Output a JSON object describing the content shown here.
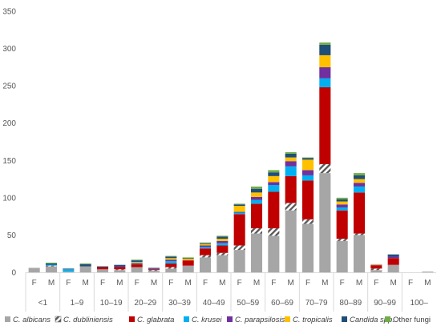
{
  "chart_data": {
    "type": "bar",
    "stacked": true,
    "ylim": [
      0,
      350
    ],
    "yticks": [
      0,
      50,
      100,
      150,
      200,
      250,
      300,
      350
    ],
    "grid": false,
    "legend_position": "bottom",
    "colors": {
      "C. albicans": "#a6a6a6",
      "C. dubliniensis": "hatch",
      "C. glabrata": "#c00000",
      "C. krusei": "#00b0f0",
      "C. parapsilosis": "#7030a0",
      "C. tropicalis": "#ffc000",
      "Candida spp.": "#1f4e79",
      "Other fungi": "#70ad47"
    },
    "age_groups": [
      "<1",
      "1–9",
      "10–19",
      "20–29",
      "30–39",
      "40–49",
      "50–59",
      "60–69",
      "70–79",
      "80–89",
      "90–99",
      "100–"
    ],
    "sex_labels": [
      "F",
      "M"
    ],
    "bars": [
      {
        "group": "<1",
        "sex": "F",
        "values": [
          6,
          0,
          0,
          0,
          0,
          0,
          0,
          0
        ]
      },
      {
        "group": "<1",
        "sex": "M",
        "values": [
          8,
          1,
          0,
          1,
          0,
          0,
          2,
          1
        ]
      },
      {
        "group": "1–9",
        "sex": "F",
        "values": [
          1,
          0,
          0,
          3,
          0,
          0,
          1,
          0
        ]
      },
      {
        "group": "1–9",
        "sex": "M",
        "values": [
          8,
          0,
          0,
          0,
          0,
          0,
          3,
          1
        ]
      },
      {
        "group": "10–19",
        "sex": "F",
        "values": [
          4,
          0,
          3,
          0,
          0,
          0,
          1,
          0
        ]
      },
      {
        "group": "10–19",
        "sex": "M",
        "values": [
          3,
          1,
          3,
          0,
          1,
          0,
          2,
          0
        ]
      },
      {
        "group": "20–29",
        "sex": "F",
        "values": [
          7,
          0,
          4,
          1,
          1,
          1,
          2,
          1
        ]
      },
      {
        "group": "20–29",
        "sex": "M",
        "values": [
          2,
          1,
          1,
          0,
          1,
          0,
          1,
          0
        ]
      },
      {
        "group": "30–39",
        "sex": "F",
        "values": [
          5,
          2,
          5,
          3,
          2,
          2,
          2,
          1
        ]
      },
      {
        "group": "30–39",
        "sex": "M",
        "values": [
          9,
          0,
          7,
          0,
          0,
          2,
          1,
          1
        ]
      },
      {
        "group": "40–49",
        "sex": "F",
        "values": [
          20,
          3,
          9,
          2,
          2,
          2,
          1,
          1
        ]
      },
      {
        "group": "40–49",
        "sex": "M",
        "values": [
          23,
          3,
          10,
          3,
          3,
          3,
          3,
          1
        ]
      },
      {
        "group": "50–59",
        "sex": "F",
        "values": [
          30,
          6,
          42,
          2,
          1,
          8,
          2,
          1
        ]
      },
      {
        "group": "50–59",
        "sex": "M",
        "values": [
          52,
          7,
          33,
          5,
          4,
          6,
          5,
          3
        ]
      },
      {
        "group": "60–69",
        "sex": "F",
        "values": [
          49,
          10,
          49,
          9,
          4,
          8,
          5,
          3
        ]
      },
      {
        "group": "60–69",
        "sex": "M",
        "values": [
          83,
          10,
          36,
          13,
          7,
          5,
          5,
          2
        ]
      },
      {
        "group": "70–79",
        "sex": "F",
        "values": [
          65,
          6,
          52,
          7,
          7,
          14,
          2,
          1
        ]
      },
      {
        "group": "70–79",
        "sex": "M",
        "values": [
          133,
          12,
          103,
          12,
          15,
          16,
          14,
          3
        ]
      },
      {
        "group": "80–89",
        "sex": "F",
        "values": [
          42,
          3,
          38,
          4,
          4,
          4,
          3,
          2
        ]
      },
      {
        "group": "80–89",
        "sex": "M",
        "values": [
          50,
          2,
          55,
          8,
          5,
          5,
          5,
          3
        ]
      },
      {
        "group": "90–99",
        "sex": "F",
        "values": [
          3,
          2,
          4,
          0,
          1,
          1,
          0,
          0
        ]
      },
      {
        "group": "90–99",
        "sex": "M",
        "values": [
          10,
          0,
          9,
          0,
          2,
          0,
          3,
          0
        ]
      },
      {
        "group": "100–",
        "sex": "M",
        "values": [
          1,
          0,
          0,
          0,
          0,
          0,
          0,
          0
        ]
      }
    ],
    "series": [
      {
        "name": "C. albicans"
      },
      {
        "name": "C. dubliniensis"
      },
      {
        "name": "C. glabrata"
      },
      {
        "name": "C. krusei"
      },
      {
        "name": "C. parapsilosis"
      },
      {
        "name": "C. tropicalis"
      },
      {
        "name": "Candida spp."
      },
      {
        "name": "Other fungi"
      }
    ]
  }
}
